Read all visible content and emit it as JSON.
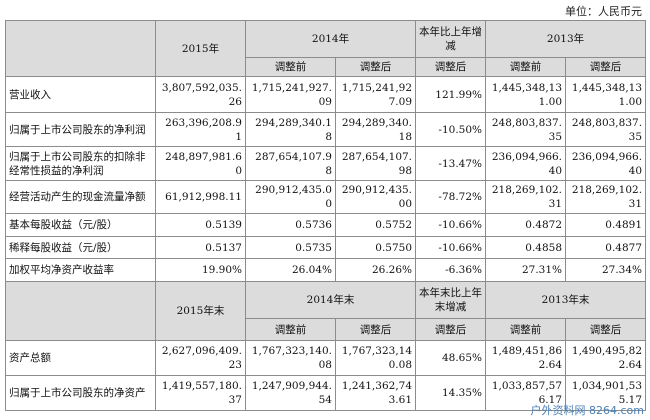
{
  "unit": "单位：人民币元",
  "sections": [
    {
      "header": [
        [
          "2015年",
          "2014年",
          "本年比上年增减",
          "2013年"
        ],
        [
          "调整前",
          "调整后",
          "调整后",
          "调整前",
          "调整后"
        ]
      ],
      "rows": [
        [
          "营业收入",
          "3,807,592,035.26",
          "1,715,241,927.09",
          "1,715,241,927.09",
          "121.99%",
          "1,445,348,131.00",
          "1,445,348,131.00"
        ],
        [
          "归属于上市公司股东的净利润",
          "263,396,208.91",
          "294,289,340.18",
          "294,289,340.18",
          "-10.50%",
          "248,803,837.35",
          "248,803,837.35"
        ],
        [
          "归属于上市公司股东的扣除非经常性损益的净利润",
          "248,897,981.60",
          "287,654,107.98",
          "287,654,107.98",
          "-13.47%",
          "236,094,966.40",
          "236,094,966.40"
        ],
        [
          "经营活动产生的现金流量净额",
          "61,912,998.11",
          "290,912,435.00",
          "290,912,435.00",
          "-78.72%",
          "218,269,102.31",
          "218,269,102.31"
        ],
        [
          "基本每股收益（元/股）",
          "0.5139",
          "0.5736",
          "0.5752",
          "-10.66%",
          "0.4872",
          "0.4891"
        ],
        [
          "稀释每股收益（元/股）",
          "0.5137",
          "0.5735",
          "0.5750",
          "-10.66%",
          "0.4858",
          "0.4877"
        ],
        [
          "加权平均净资产收益率",
          "19.90%",
          "26.04%",
          "26.26%",
          "-6.36%",
          "27.31%",
          "27.34%"
        ]
      ]
    },
    {
      "header": [
        [
          "2015年末",
          "2014年末",
          "本年末比上年末增减",
          "2013年末"
        ],
        [
          "调整前",
          "调整后",
          "调整后",
          "调整前",
          "调整后"
        ]
      ],
      "rows": [
        [
          "资产总额",
          "2,627,096,409.23",
          "1,767,323,140.08",
          "1,767,323,140.08",
          "48.65%",
          "1,489,451,862.64",
          "1,490,495,822.64"
        ],
        [
          "归属于上市公司股东的净资产",
          "1,419,557,180.37",
          "1,247,909,944.54",
          "1,241,362,743.61",
          "14.35%",
          "1,033,857,576.17",
          "1,034,901,535.17"
        ]
      ]
    }
  ],
  "watermark": "户外资料网 8264.com"
}
